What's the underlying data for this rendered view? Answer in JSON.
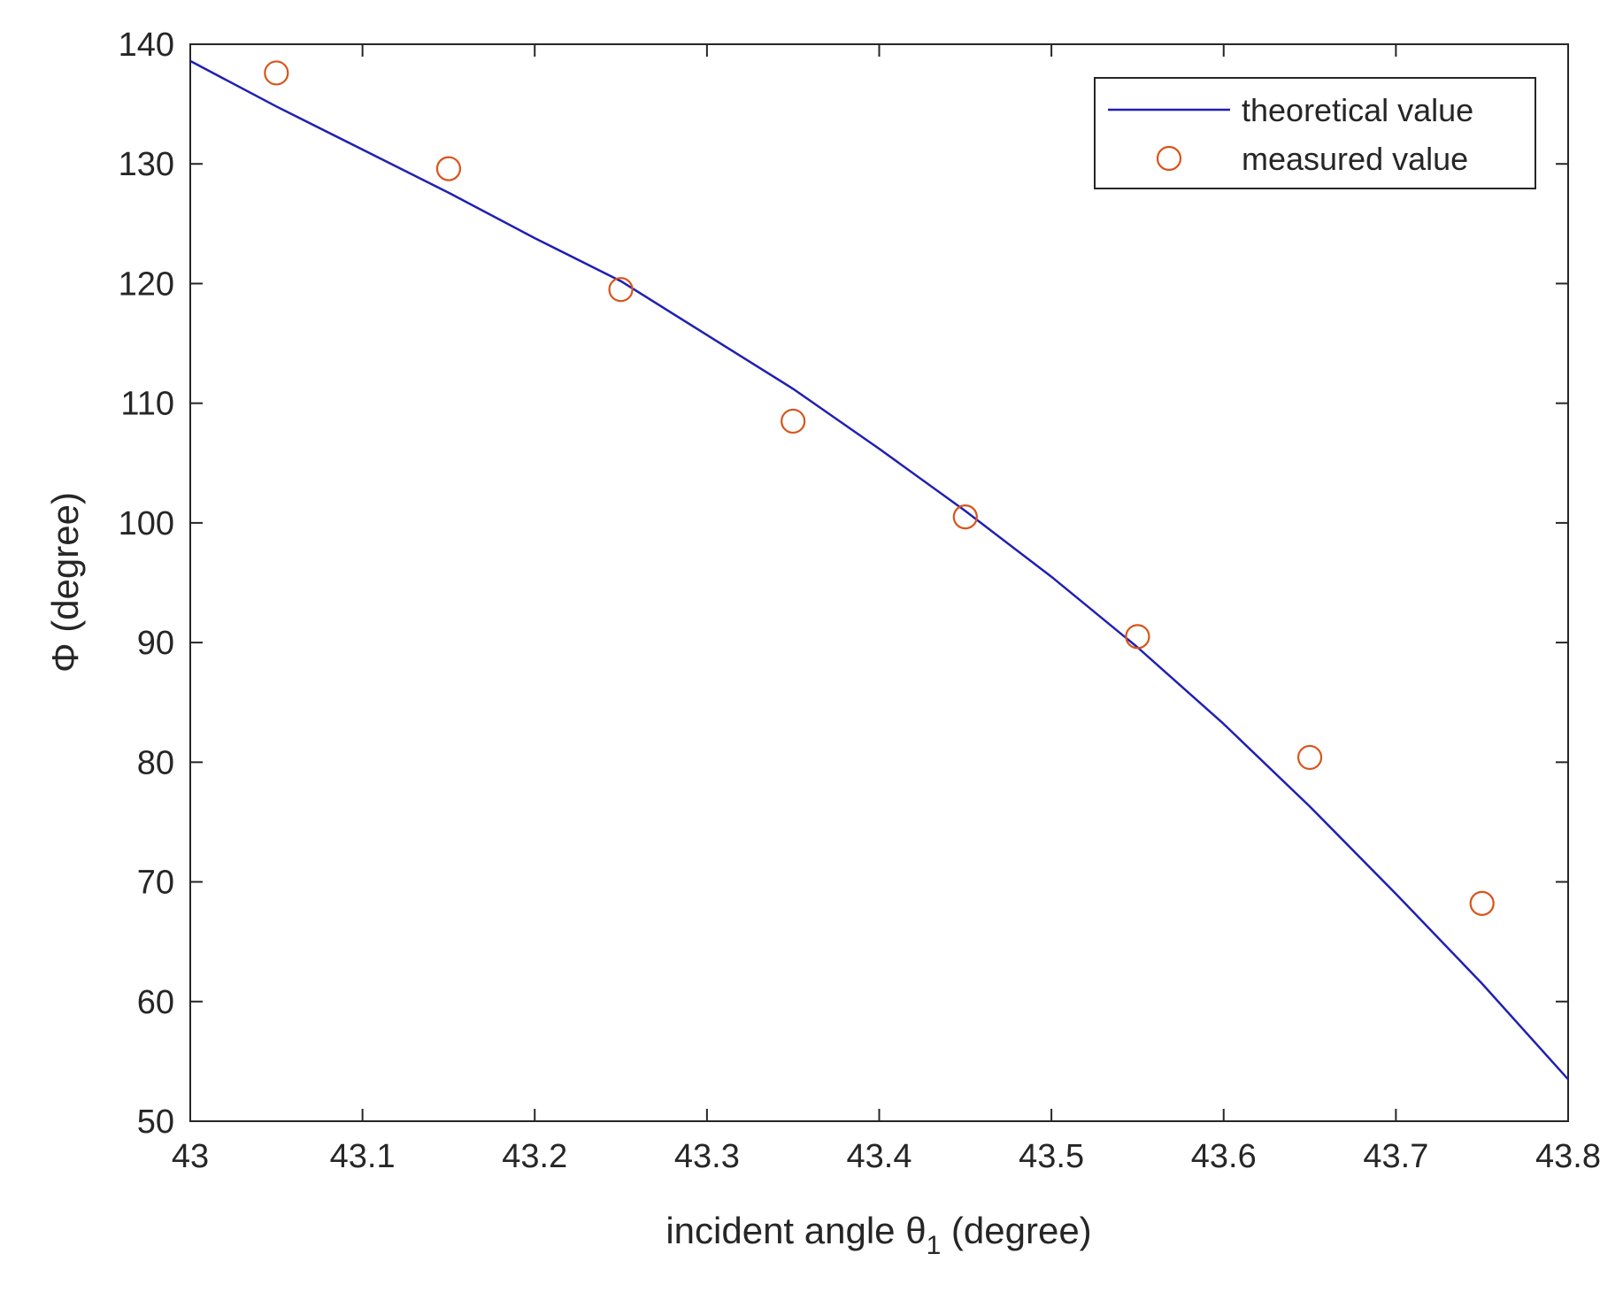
{
  "chart_data": {
    "type": "line",
    "xlabel": {
      "main": "incident angle θ",
      "sub": "1",
      "tail": " (degree)"
    },
    "ylabel": "Φ (degree)",
    "xlim": [
      43,
      43.8
    ],
    "ylim": [
      50,
      140
    ],
    "xticks": [
      "43",
      "43.1",
      "43.2",
      "43.3",
      "43.4",
      "43.5",
      "43.6",
      "43.7",
      "43.8"
    ],
    "yticks": [
      "50",
      "60",
      "70",
      "80",
      "90",
      "100",
      "110",
      "120",
      "130",
      "140"
    ],
    "grid": false,
    "legend_position": "top-right",
    "series": [
      {
        "name": "theoretical value",
        "style": "line",
        "color": "#1f1fb4",
        "x": [
          43.0,
          43.05,
          43.1,
          43.15,
          43.2,
          43.25,
          43.3,
          43.35,
          43.4,
          43.45,
          43.5,
          43.55,
          43.6,
          43.65,
          43.7,
          43.75,
          43.8
        ],
        "y": [
          138.6,
          134.8,
          131.2,
          127.6,
          123.8,
          120.2,
          115.7,
          111.2,
          106.2,
          101.0,
          95.5,
          89.6,
          83.2,
          76.3,
          69.0,
          61.5,
          53.5
        ]
      },
      {
        "name": "measured value",
        "style": "marker-circle",
        "color": "#d9541a",
        "x": [
          43.05,
          43.15,
          43.25,
          43.35,
          43.45,
          43.55,
          43.65,
          43.75
        ],
        "y": [
          137.6,
          129.6,
          119.5,
          108.5,
          100.5,
          90.5,
          80.4,
          68.2
        ]
      }
    ]
  }
}
